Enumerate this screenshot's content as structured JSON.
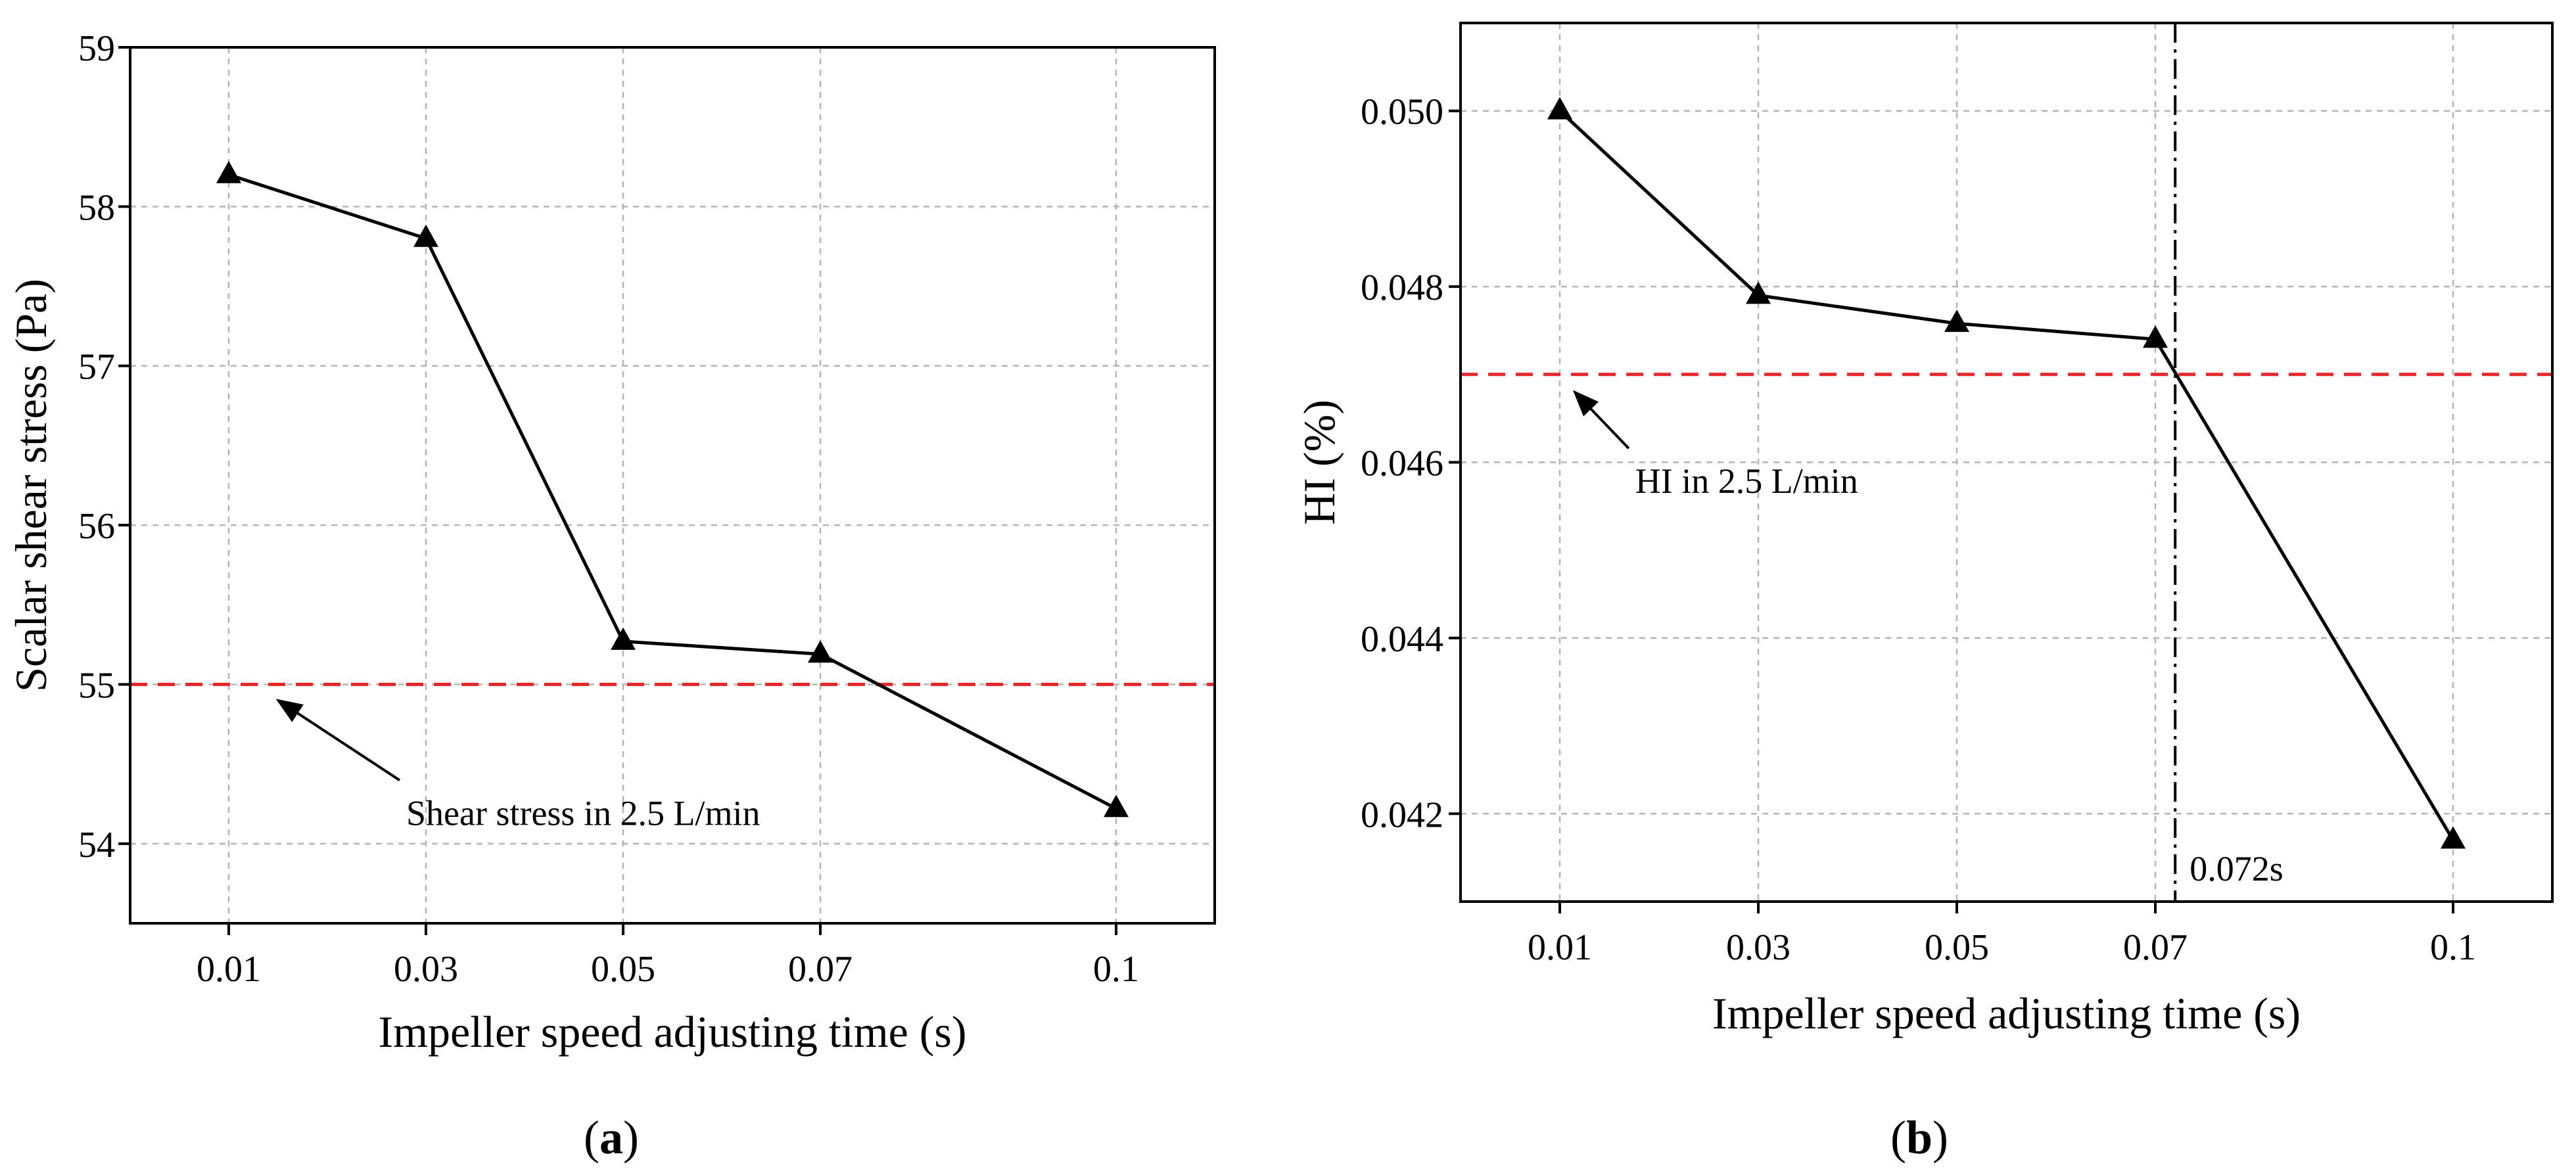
{
  "chart_data": [
    {
      "id": "a",
      "type": "line",
      "panel_label_prefix": "(",
      "panel_label_letter": "a",
      "panel_label_suffix": ")",
      "xlabel": "Impeller speed adjusting time (s)",
      "ylabel": "Scalar shear stress (Pa)",
      "categories": [
        "0.01",
        "0.03",
        "0.05",
        "0.07",
        "0.1"
      ],
      "x": [
        0.01,
        0.03,
        0.05,
        0.07,
        0.1
      ],
      "xlim": [
        0.0,
        0.11
      ],
      "ylim": [
        53.5,
        59
      ],
      "yticks": [
        54,
        55,
        56,
        57,
        58,
        59
      ],
      "ytick_labels": [
        "54",
        "55",
        "56",
        "57",
        "58",
        "59"
      ],
      "series": [
        {
          "name": "Scalar shear stress",
          "values": [
            58.2,
            57.8,
            55.27,
            55.19,
            54.22
          ],
          "color": "#000000",
          "marker": "triangle"
        }
      ],
      "reference_line": {
        "y": 55,
        "color": "#e8272a",
        "style": "dashed"
      },
      "vertical_line": null,
      "annotations": [
        {
          "text": "Shear stress in 2.5 L/min",
          "target_x": 0.015,
          "target_y": 54.9,
          "text_x": 0.028,
          "text_y": 54.2
        }
      ],
      "grid": true
    },
    {
      "id": "b",
      "type": "line",
      "panel_label_prefix": "(",
      "panel_label_letter": "b",
      "panel_label_suffix": ")",
      "xlabel": "Impeller speed adjusting time (s)",
      "ylabel": "HI (%)",
      "categories": [
        "0.01",
        "0.03",
        "0.05",
        "0.07",
        "0.1"
      ],
      "x": [
        0.01,
        0.03,
        0.05,
        0.07,
        0.1
      ],
      "xlim": [
        0.0,
        0.11
      ],
      "ylim": [
        0.041,
        0.051
      ],
      "yticks": [
        0.042,
        0.044,
        0.046,
        0.048,
        0.05
      ],
      "ytick_labels": [
        "0.042",
        "0.044",
        "0.046",
        "0.048",
        "0.050"
      ],
      "series": [
        {
          "name": "HI",
          "values": [
            0.05,
            0.0479,
            0.04758,
            0.0474,
            0.0417
          ],
          "color": "#000000",
          "marker": "triangle"
        }
      ],
      "reference_line": {
        "y": 0.047,
        "color": "#e8272a",
        "style": "dashed"
      },
      "vertical_line": {
        "x": 0.072,
        "label": "0.072s",
        "style": "dash-dot"
      },
      "annotations": [
        {
          "text": "HI in 2.5 L/min",
          "target_x": 0.0115,
          "target_y": 0.0468,
          "text_x": 0.0176,
          "text_y": 0.0458
        }
      ],
      "grid": true
    }
  ]
}
